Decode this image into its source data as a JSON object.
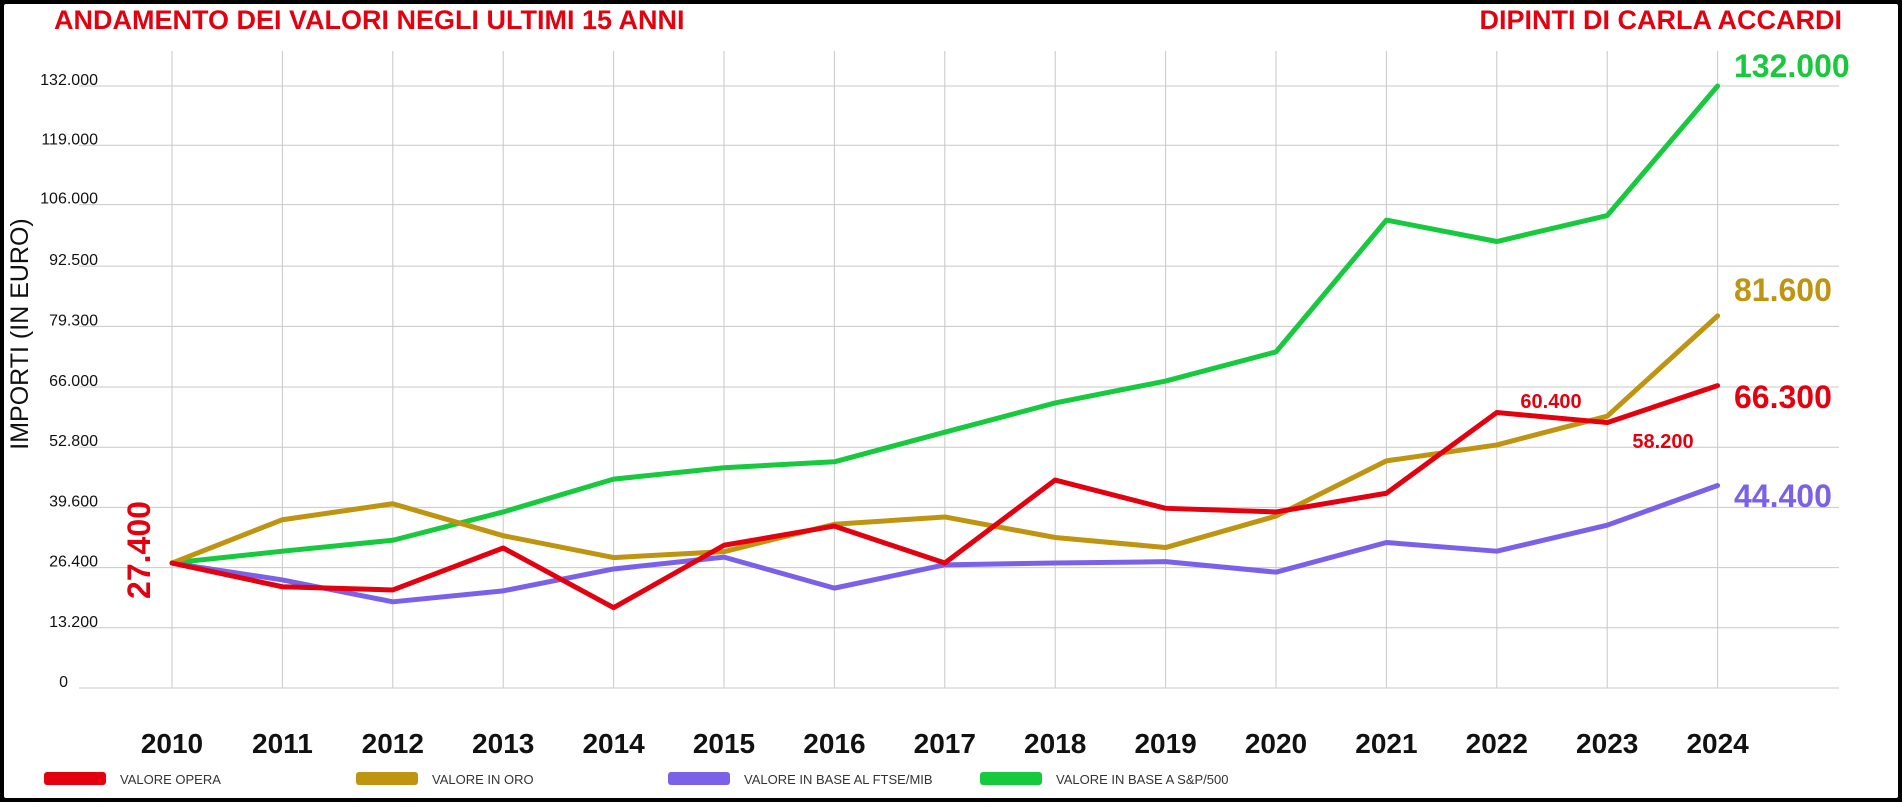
{
  "chart_data": {
    "type": "line",
    "title": "ANDAMENTO DEI VALORI NEGLI ULTIMI 15 ANNI",
    "subtitle": "DIPINTI DI CARLA ACCARDI",
    "ylabel": "IMPORTI (IN EURO)",
    "xlabel": "",
    "ylim": [
      0,
      132000
    ],
    "y_ticks": [
      {
        "value": 0,
        "label": "0"
      },
      {
        "value": 13200,
        "label": "13.200"
      },
      {
        "value": 26400,
        "label": "26.400"
      },
      {
        "value": 39600,
        "label": "39.600"
      },
      {
        "value": 52800,
        "label": "52.800"
      },
      {
        "value": 66000,
        "label": "66.000"
      },
      {
        "value": 79300,
        "label": "79.300"
      },
      {
        "value": 92500,
        "label": "92.500"
      },
      {
        "value": 106000,
        "label": "106.000"
      },
      {
        "value": 119000,
        "label": "119.000"
      },
      {
        "value": 132000,
        "label": "132.000"
      }
    ],
    "categories": [
      "2010",
      "2011",
      "2012",
      "2013",
      "2014",
      "2015",
      "2016",
      "2017",
      "2018",
      "2019",
      "2020",
      "2021",
      "2022",
      "2023",
      "2024"
    ],
    "grid": true,
    "legend_position": "bottom",
    "series": [
      {
        "name": "VALORE OPERA",
        "color": "#e3000f",
        "values": [
          27400,
          22200,
          21500,
          30700,
          17600,
          31300,
          35500,
          27400,
          45600,
          39400,
          38600,
          42700,
          60400,
          58200,
          66300
        ]
      },
      {
        "name": "VALORE IN ORO",
        "color": "#bf9410",
        "values": [
          27400,
          36900,
          40400,
          33400,
          28600,
          29900,
          35900,
          37500,
          33000,
          30800,
          37700,
          49800,
          53300,
          59600,
          81600
        ]
      },
      {
        "name": "VALORE IN BASE AL FTSE/MIB",
        "color": "#7b61e8",
        "values": [
          27400,
          23700,
          18900,
          21300,
          26100,
          28700,
          21900,
          27000,
          27400,
          27700,
          25400,
          31900,
          30000,
          35700,
          44400
        ]
      },
      {
        "name": "VALORE IN BASE A S&P/500",
        "color": "#16c93d",
        "values": [
          27400,
          30000,
          32400,
          38600,
          45800,
          48300,
          49600,
          56100,
          62500,
          67300,
          73700,
          102600,
          97900,
          103600,
          132000
        ]
      }
    ],
    "annotations": [
      {
        "text": "27.400",
        "color": "#e3000f"
      },
      {
        "text": "60.400",
        "color": "#e3000f"
      },
      {
        "text": "58.200",
        "color": "#e3000f"
      },
      {
        "text": "132.000",
        "color": "#16c93d"
      },
      {
        "text": "81.600",
        "color": "#bf9410"
      },
      {
        "text": "66.300",
        "color": "#e3000f"
      },
      {
        "text": "44.400",
        "color": "#7b61e8"
      }
    ]
  }
}
